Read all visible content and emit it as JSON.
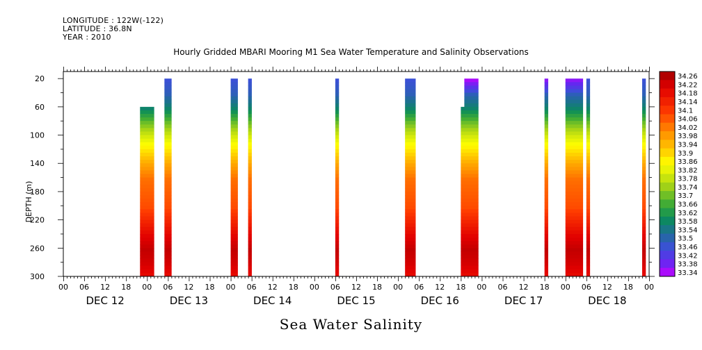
{
  "header": {
    "longitude": "LONGITUDE : 122W(-122)",
    "latitude": "LATITUDE : 36.8N",
    "year": "YEAR : 2010"
  },
  "chart_data": {
    "type": "heatmap",
    "title": "Hourly Gridded MBARI Mooring M1 Sea Water Temperature and Salinity Observations",
    "subtitle": "Sea Water Salinity",
    "xlabel": "",
    "ylabel": "DEPTH (m)",
    "ylim": [
      300,
      10
    ],
    "y_ticks": [
      20,
      60,
      100,
      140,
      180,
      220,
      260,
      300
    ],
    "x_range_hours": [
      0,
      168
    ],
    "x_tick_labels": [
      "00",
      "06",
      "12",
      "18",
      "00",
      "06",
      "12",
      "18",
      "00",
      "06",
      "12",
      "18",
      "00",
      "06",
      "12",
      "18",
      "00",
      "06",
      "12",
      "18",
      "00",
      "06",
      "12",
      "18",
      "00",
      "06",
      "12",
      "18",
      "00"
    ],
    "day_labels": [
      "DEC 12",
      "DEC 13",
      "DEC 14",
      "DEC 15",
      "DEC 16",
      "DEC 17",
      "DEC 18"
    ],
    "colorbar": {
      "levels": [
        "34.26",
        "34.22",
        "34.18",
        "34.14",
        "34.1",
        "34.06",
        "34.02",
        "33.98",
        "33.94",
        "33.9",
        "33.86",
        "33.82",
        "33.78",
        "33.74",
        "33.7",
        "33.66",
        "33.62",
        "33.58",
        "33.54",
        "33.5",
        "33.46",
        "33.42",
        "33.38",
        "33.34"
      ],
      "min": 33.34,
      "max": 34.26
    },
    "profile": {
      "depths": [
        20,
        40,
        60,
        80,
        100,
        120,
        140,
        160,
        180,
        200,
        220,
        240,
        260,
        280,
        300
      ],
      "salinity": [
        33.47,
        33.5,
        33.58,
        33.7,
        33.8,
        33.88,
        33.96,
        34.02,
        34.04,
        34.06,
        34.12,
        34.18,
        34.22,
        34.2,
        34.16
      ]
    },
    "columns": [
      {
        "start_hour": 22,
        "end_hour": 26,
        "top_depth": 60
      },
      {
        "start_hour": 29,
        "end_hour": 31,
        "top_depth": 20
      },
      {
        "start_hour": 48,
        "end_hour": 50,
        "top_depth": 20
      },
      {
        "start_hour": 53,
        "end_hour": 54,
        "top_depth": 20
      },
      {
        "start_hour": 78,
        "end_hour": 79,
        "top_depth": 20
      },
      {
        "start_hour": 98,
        "end_hour": 101,
        "top_depth": 20
      },
      {
        "start_hour": 114,
        "end_hour": 115,
        "top_depth": 60
      },
      {
        "start_hour": 115,
        "end_hour": 119,
        "top_depth": 20,
        "surface_salinity": 33.36
      },
      {
        "start_hour": 138,
        "end_hour": 139,
        "top_depth": 20,
        "surface_salinity": 33.38
      },
      {
        "start_hour": 144,
        "end_hour": 149,
        "top_depth": 20,
        "surface_salinity": 33.38
      },
      {
        "start_hour": 150,
        "end_hour": 151,
        "top_depth": 20
      },
      {
        "start_hour": 166,
        "end_hour": 167,
        "top_depth": 20
      }
    ]
  }
}
